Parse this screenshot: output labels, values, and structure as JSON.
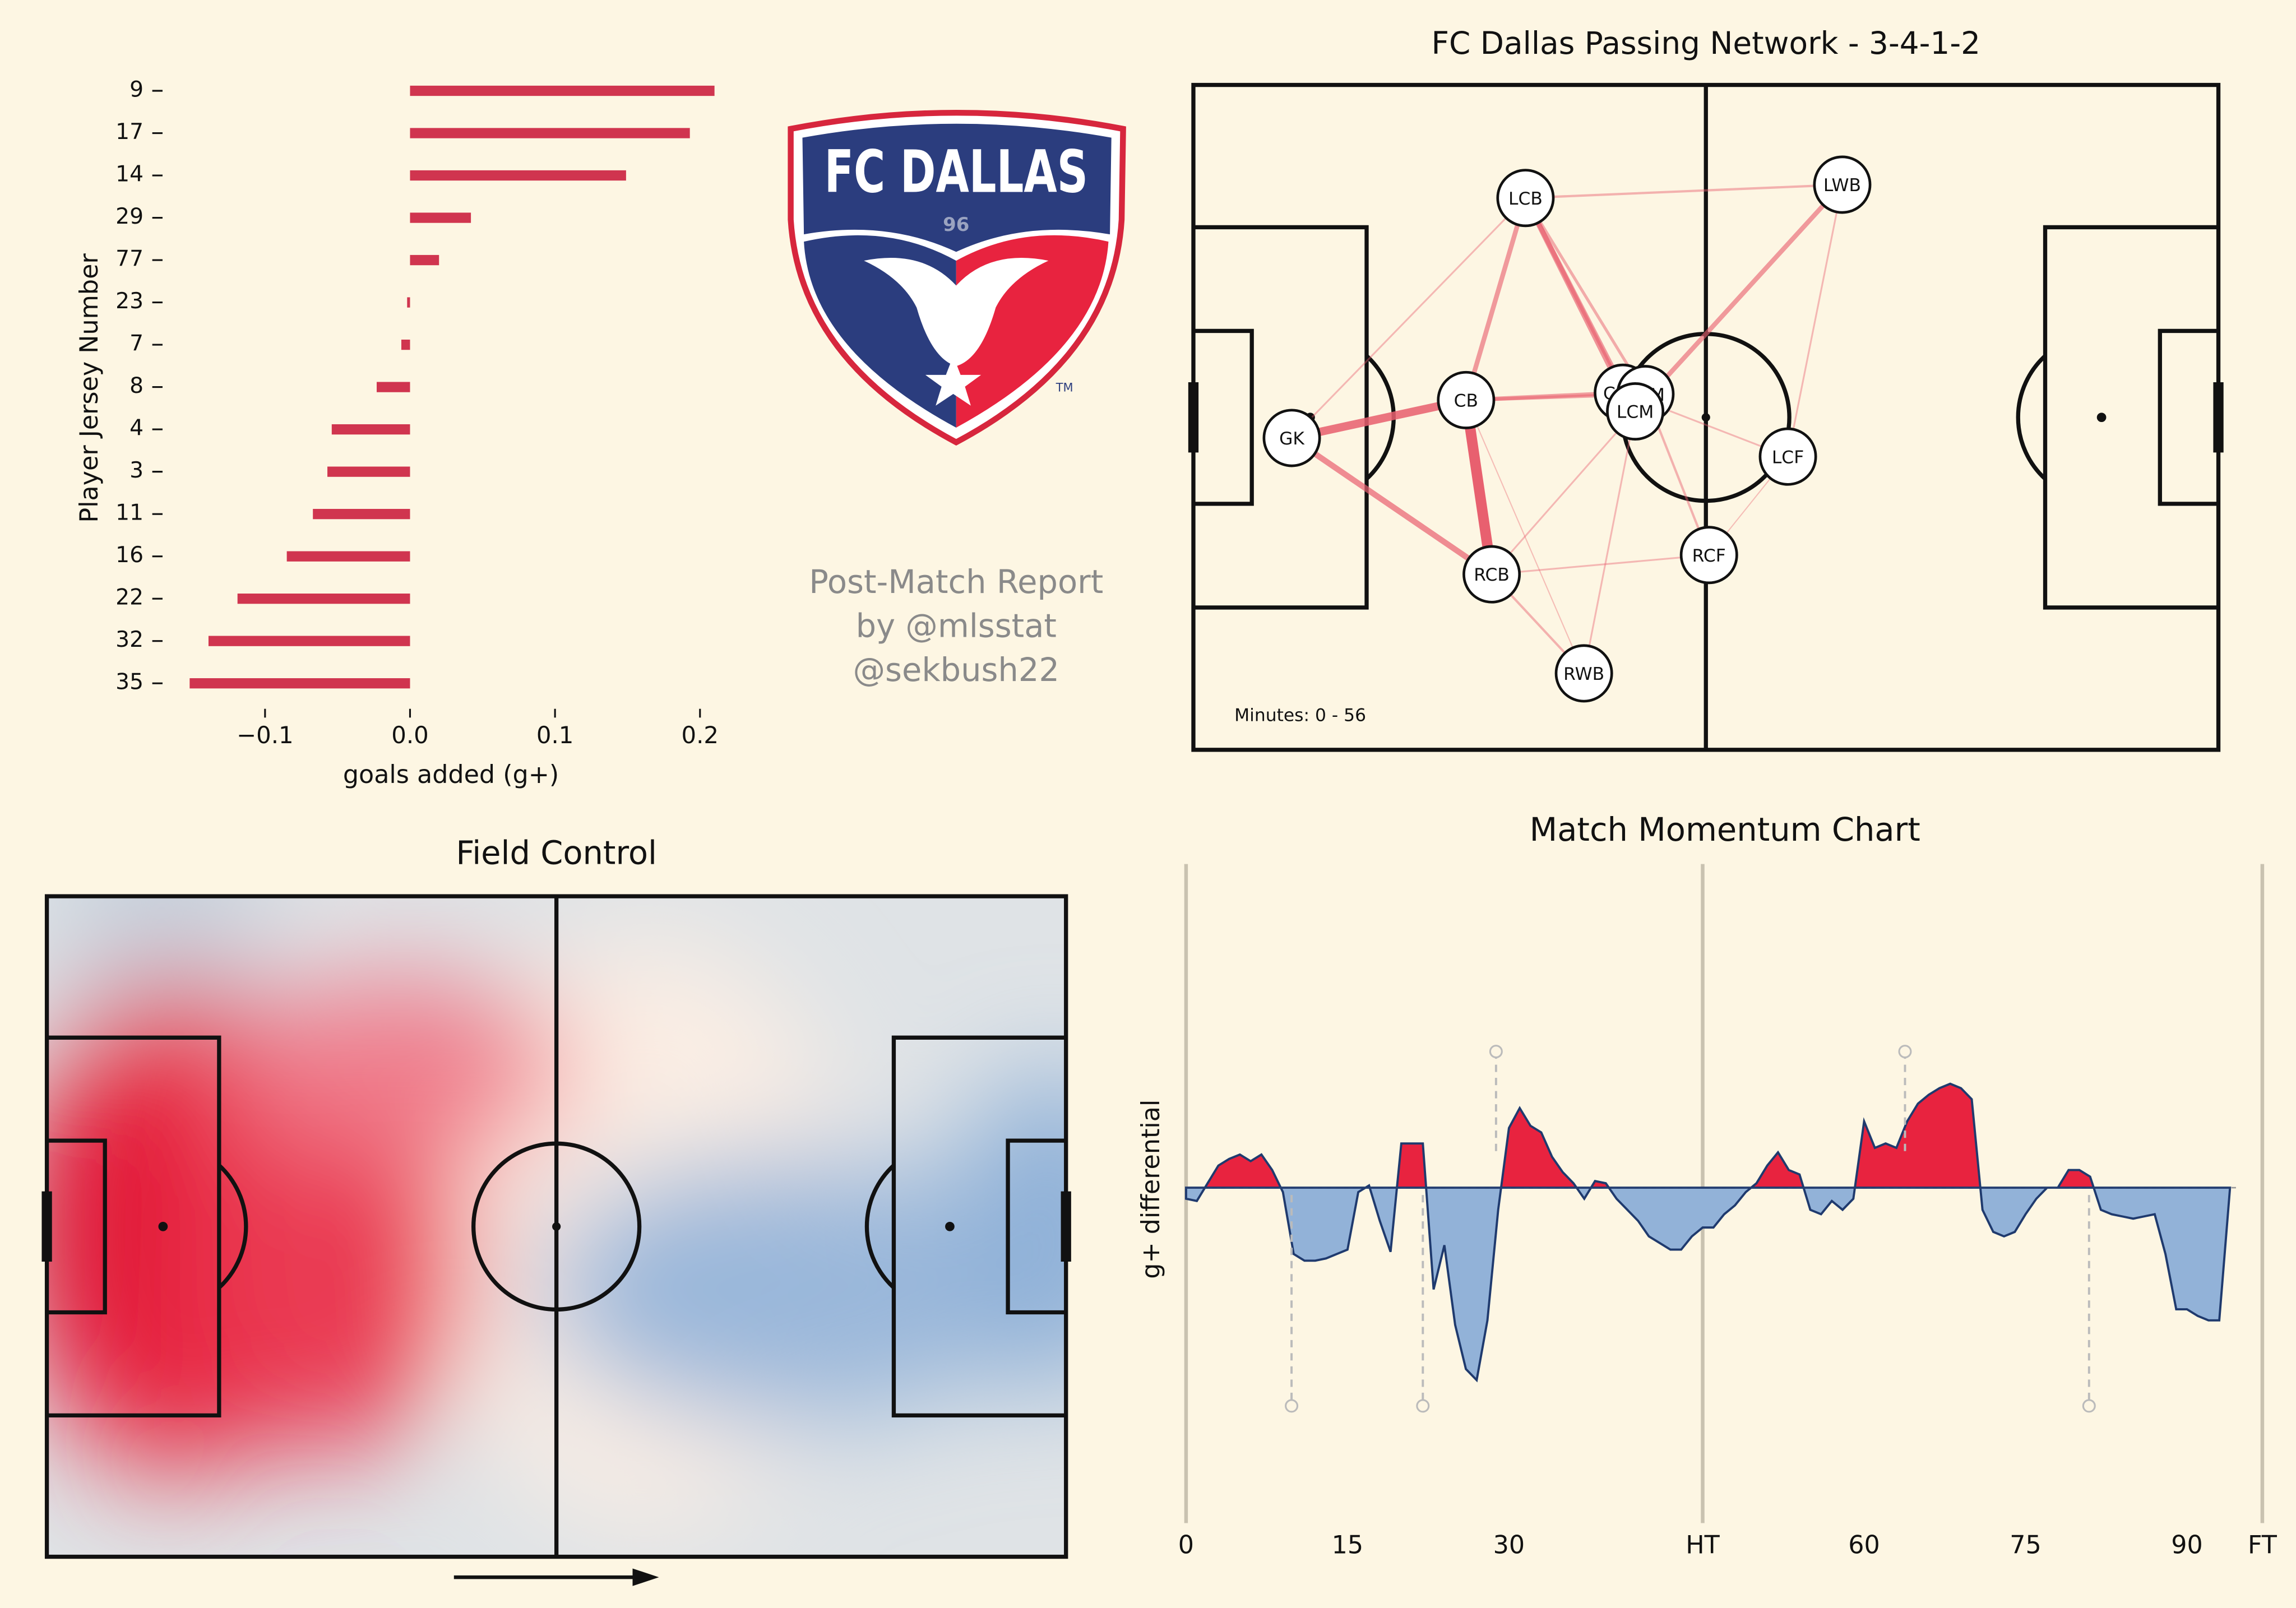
{
  "logo": {
    "name": "FC DALLAS",
    "year": "96",
    "trademark": "TM"
  },
  "report": {
    "title": "Post-Match Report",
    "byline": "by @mlsstat",
    "handle": "@sekbush22"
  },
  "chart_data": [
    {
      "type": "barh",
      "ylabel": "Player Jersey Number",
      "xlabel": "goals added (g+)",
      "categories": [
        "9",
        "17",
        "14",
        "29",
        "77",
        "23",
        "7",
        "8",
        "4",
        "3",
        "11",
        "16",
        "22",
        "32",
        "35"
      ],
      "values": [
        0.21,
        0.193,
        0.149,
        0.042,
        0.02,
        -0.002,
        -0.006,
        -0.023,
        -0.054,
        -0.057,
        -0.067,
        -0.085,
        -0.119,
        -0.139,
        -0.152
      ],
      "color": "#d0354f",
      "xlim": [
        -0.16,
        0.215
      ],
      "xticks": [
        {
          "value": -0.1,
          "label": "−0.1"
        },
        {
          "value": 0,
          "label": "0.0"
        },
        0.1,
        0.2
      ]
    },
    {
      "type": "network",
      "title": "FC Dallas Passing Network - 3-4-1-2",
      "note": "Minutes: 0 - 56",
      "color": "#e8606f",
      "xlim": [
        0,
        100
      ],
      "ylim": [
        0,
        100
      ],
      "nodes": [
        {
          "label": "GK",
          "x": 9.6,
          "y": 53.1
        },
        {
          "label": "CB",
          "x": 26.6,
          "y": 47.4
        },
        {
          "label": "LCB",
          "x": 32.4,
          "y": 17.0
        },
        {
          "label": "RCB",
          "x": 29.1,
          "y": 73.6
        },
        {
          "label": "LWB",
          "x": 63.3,
          "y": 15.0
        },
        {
          "label": "RWB",
          "x": 38.1,
          "y": 88.5
        },
        {
          "label": "CAM",
          "x": 41.9,
          "y": 46.3
        },
        {
          "label": "RCM",
          "x": 44.1,
          "y": 46.5
        },
        {
          "label": "LCM",
          "x": 43.1,
          "y": 49.1
        },
        {
          "label": "LCF",
          "x": 58.0,
          "y": 55.9
        },
        {
          "label": "RCF",
          "x": 50.3,
          "y": 70.7
        }
      ],
      "edges": [
        {
          "source": 0,
          "target": 1,
          "passes": 14
        },
        {
          "source": 0,
          "target": 3,
          "passes": 10
        },
        {
          "source": 0,
          "target": 2,
          "passes": 3
        },
        {
          "source": 1,
          "target": 3,
          "passes": 18
        },
        {
          "source": 1,
          "target": 2,
          "passes": 8
        },
        {
          "source": 1,
          "target": 6,
          "passes": 7
        },
        {
          "source": 1,
          "target": 7,
          "passes": 6
        },
        {
          "source": 2,
          "target": 6,
          "passes": 9
        },
        {
          "source": 2,
          "target": 8,
          "passes": 8
        },
        {
          "source": 2,
          "target": 4,
          "passes": 4
        },
        {
          "source": 2,
          "target": 7,
          "passes": 5
        },
        {
          "source": 3,
          "target": 5,
          "passes": 4
        },
        {
          "source": 3,
          "target": 8,
          "passes": 3
        },
        {
          "source": 3,
          "target": 10,
          "passes": 3
        },
        {
          "source": 4,
          "target": 8,
          "passes": 8
        },
        {
          "source": 4,
          "target": 9,
          "passes": 3
        },
        {
          "source": 6,
          "target": 9,
          "passes": 3
        },
        {
          "source": 7,
          "target": 10,
          "passes": 4
        },
        {
          "source": 8,
          "target": 5,
          "passes": 3
        },
        {
          "source": 9,
          "target": 10,
          "passes": 2
        },
        {
          "source": 1,
          "target": 5,
          "passes": 2
        }
      ]
    },
    {
      "type": "heatmap",
      "title": "Field Control"
    },
    {
      "type": "momentum",
      "title": "Match Momentum Chart",
      "ylabel": "g+ differential",
      "colors": {
        "positive": "#e8233f",
        "negative": "#92b2d8",
        "line": "#1f3a6e"
      },
      "xlim": [
        0,
        100
      ],
      "ylim": [
        -1,
        1
      ],
      "xticks": [
        0,
        15,
        30,
        {
          "value": 48,
          "label": "HT"
        },
        {
          "value": 63,
          "label": "60"
        },
        {
          "value": 78,
          "label": "75"
        },
        {
          "value": 93,
          "label": "90"
        },
        {
          "value": 100,
          "label": "FT"
        }
      ],
      "periods": [
        0,
        48,
        100
      ],
      "goals_for": [
        28.8,
        66.8
      ],
      "goals_against": [
        9.8,
        22.0,
        83.9
      ],
      "x": [
        0,
        1,
        2,
        3,
        4,
        5,
        6,
        7,
        8,
        9,
        10,
        11,
        12,
        13,
        14,
        15,
        16,
        17,
        18,
        19,
        20,
        21,
        22,
        23,
        24,
        25,
        26,
        27,
        28,
        29,
        30,
        31,
        32,
        33,
        34,
        35,
        36,
        37,
        38,
        39,
        40,
        41,
        42,
        43,
        44,
        45,
        46,
        47,
        48,
        49,
        50,
        51,
        52,
        53,
        54,
        55,
        56,
        57,
        58,
        59,
        60,
        61,
        62,
        63,
        64,
        65,
        66,
        67,
        68,
        69,
        70,
        71,
        72,
        73,
        74,
        75,
        76,
        77,
        78,
        79,
        80,
        81,
        82,
        83,
        84,
        85,
        86,
        87,
        88,
        89,
        90,
        91,
        92,
        93,
        94,
        95,
        96,
        97
      ],
      "values": [
        -0.05,
        -0.06,
        0.02,
        0.1,
        0.13,
        0.15,
        0.12,
        0.15,
        0.08,
        -0.02,
        -0.3,
        -0.33,
        -0.33,
        -0.32,
        -0.3,
        -0.28,
        -0.02,
        0.01,
        -0.15,
        -0.29,
        0.2,
        0.2,
        0.2,
        -0.46,
        -0.26,
        -0.62,
        -0.82,
        -0.87,
        -0.6,
        -0.1,
        0.27,
        0.36,
        0.28,
        0.25,
        0.14,
        0.07,
        0.02,
        -0.05,
        0.03,
        0.02,
        -0.05,
        -0.1,
        -0.15,
        -0.22,
        -0.25,
        -0.28,
        -0.28,
        -0.22,
        -0.18,
        -0.18,
        -0.12,
        -0.08,
        -0.02,
        0.02,
        0.1,
        0.16,
        0.08,
        0.06,
        -0.1,
        -0.12,
        -0.06,
        -0.1,
        -0.05,
        0.3,
        0.18,
        0.2,
        0.18,
        0.3,
        0.38,
        0.42,
        0.45,
        0.47,
        0.45,
        0.4,
        -0.1,
        -0.2,
        -0.22,
        -0.2,
        -0.12,
        -0.05,
        0,
        0,
        0.08,
        0.08,
        0.05,
        -0.1,
        -0.12,
        -0.13,
        -0.14,
        -0.13,
        -0.12,
        -0.3,
        -0.55,
        -0.55,
        -0.58,
        -0.6,
        -0.6,
        0
      ]
    }
  ]
}
